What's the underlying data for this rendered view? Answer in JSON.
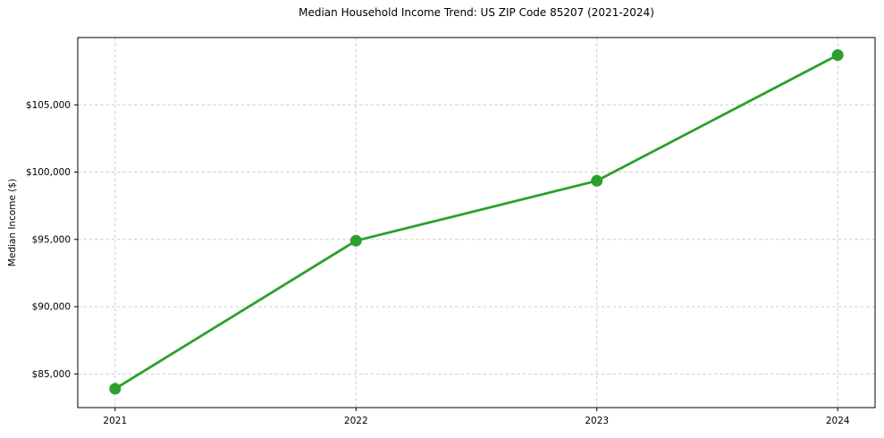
{
  "chart_data": {
    "type": "line",
    "title": "Median Household Income Trend: US ZIP Code 85207 (2021-2024)",
    "xlabel": "",
    "ylabel": "Median Income ($)",
    "x": [
      2021,
      2022,
      2023,
      2024
    ],
    "x_tick_labels": [
      "2021",
      "2022",
      "2023",
      "2024"
    ],
    "y_ticks": [
      85000,
      90000,
      95000,
      100000,
      105000
    ],
    "y_tick_labels": [
      "$85,000",
      "$90,000",
      "$95,000",
      "$100,000",
      "$105,000"
    ],
    "series": [
      {
        "name": "Median Household Income",
        "values": [
          83900,
          94900,
          99350,
          108700
        ],
        "color": "#2ca02c"
      }
    ],
    "xlim": [
      2020.845,
      2024.155
    ],
    "ylim": [
      82500,
      110000
    ],
    "grid": true,
    "grid_color": "#cdcdcd",
    "spine_color": "#000000",
    "tick_label_color": "#000000",
    "line_width": 2.8,
    "marker": "circle",
    "marker_radius": 6.5,
    "legend": "none",
    "background": "#ffffff"
  }
}
